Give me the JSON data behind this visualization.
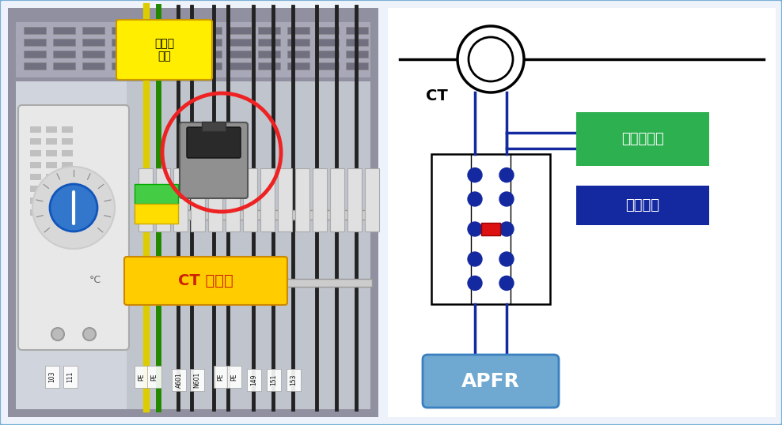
{
  "bg_color": "#eef3fb",
  "border_color": "#7ab0d4",
  "ct_label": "CT",
  "green_box_label": "保护继电器",
  "blue_box_label": "正常状态",
  "apfr_label": "APFR",
  "ct_short_label": "CT 短接片",
  "dianliuhui_label": "电流互\n感器",
  "green_color": "#2db050",
  "dark_blue_color": "#1428a0",
  "apfr_color": "#6fa8d0",
  "red_color": "#cc1111",
  "dot_color": "#1428a0",
  "line_color": "#1428a0",
  "bus_color": "#000000",
  "box_outline": "#000000",
  "right_panel_bg": "#ffffff",
  "left_panel_bg": "#b0b8c8",
  "photo_bg": "#8090a0"
}
